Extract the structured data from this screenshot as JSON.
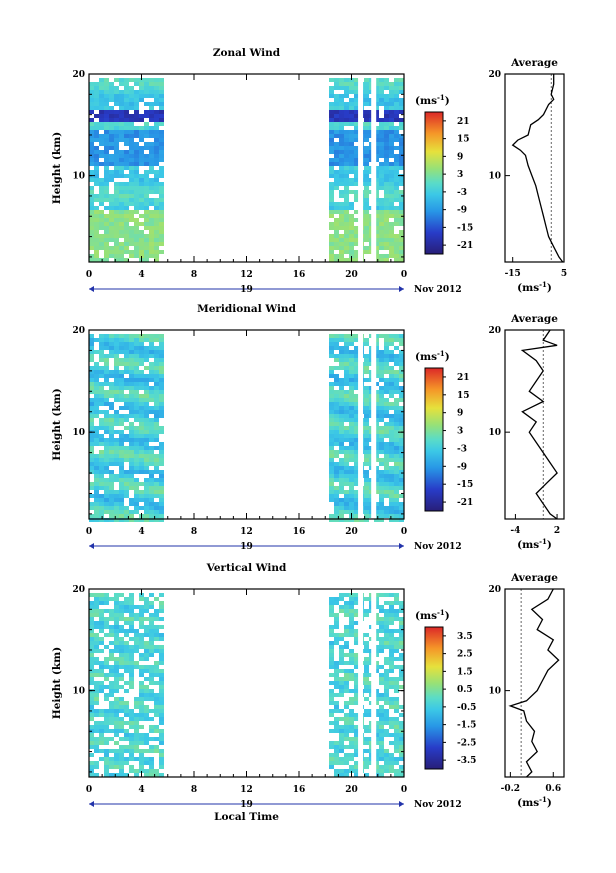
{
  "chart_data": [
    {
      "type": "heatmap",
      "title": "Zonal Wind",
      "xlabel": "",
      "ylabel": "Height (km)",
      "x_ticks": [
        "0",
        "4",
        "8",
        "12",
        "16",
        "20",
        "0"
      ],
      "y_ticks": [
        "10",
        "20"
      ],
      "xlim": [
        0,
        24
      ],
      "ylim": [
        1.5,
        20
      ],
      "date_marker": "19",
      "date_label": "Nov 2012",
      "colorbar": {
        "unit": "(ms",
        "unit_sup": "-1",
        "unit_close": ")",
        "ticks": [
          "21",
          "15",
          "9",
          "3",
          "-3",
          "-9",
          "-15",
          "-21"
        ],
        "range": [
          -24,
          24
        ]
      },
      "data_gap_local_time": [
        5.5,
        18
      ],
      "profile": {
        "title": "Average",
        "x_ticks": [
          "-15",
          "5"
        ],
        "xlim": [
          -18,
          5
        ],
        "y_ticks": [
          "10",
          "20"
        ],
        "xlabel": "(ms",
        "xlabel_sup": "-1",
        "xlabel_close": ")",
        "heights": [
          1.5,
          2,
          3,
          4,
          5,
          6,
          7,
          8,
          9,
          10,
          11,
          12,
          12.5,
          13,
          13.5,
          14,
          15,
          15.5,
          16,
          17,
          17.5,
          18,
          19,
          20
        ],
        "values": [
          4.5,
          3,
          1,
          -1,
          -2,
          -3,
          -4,
          -5,
          -6,
          -7.5,
          -9,
          -10,
          -12,
          -15,
          -13,
          -9,
          -8,
          -5,
          -3,
          -1,
          1,
          0,
          1,
          1
        ]
      }
    },
    {
      "type": "heatmap",
      "title": "Meridional Wind",
      "xlabel": "",
      "ylabel": "Height (km)",
      "x_ticks": [
        "0",
        "4",
        "8",
        "12",
        "16",
        "20",
        "0"
      ],
      "y_ticks": [
        "10",
        "20"
      ],
      "xlim": [
        0,
        24
      ],
      "ylim": [
        1.5,
        20
      ],
      "date_marker": "19",
      "date_label": "Nov 2012",
      "colorbar": {
        "unit": "(ms",
        "unit_sup": "-1",
        "unit_close": ")",
        "ticks": [
          "21",
          "15",
          "9",
          "3",
          "-3",
          "-9",
          "-15",
          "-21"
        ],
        "range": [
          -24,
          24
        ]
      },
      "data_gap_local_time": [
        5.5,
        18
      ],
      "profile": {
        "title": "Average",
        "x_ticks": [
          "-4",
          "2"
        ],
        "xlim": [
          -5.5,
          3
        ],
        "y_ticks": [
          "10",
          "20"
        ],
        "xlabel": "(ms",
        "xlabel_sup": "-1",
        "xlabel_close": ")",
        "heights": [
          1.5,
          2,
          3,
          4,
          5,
          6,
          7,
          8,
          9,
          10,
          11,
          12,
          13,
          14,
          15,
          16,
          17,
          18,
          18.5,
          19,
          20
        ],
        "values": [
          2,
          1,
          0,
          -1,
          0.5,
          2,
          1,
          0,
          -1,
          -2,
          -1,
          -3,
          0,
          -2,
          -1,
          0,
          -1,
          -3,
          2,
          0,
          1
        ]
      }
    },
    {
      "type": "heatmap",
      "title": "Vertical Wind",
      "xlabel": "Local Time",
      "ylabel": "Height (km)",
      "x_ticks": [
        "0",
        "4",
        "8",
        "12",
        "16",
        "20",
        "0"
      ],
      "y_ticks": [
        "10",
        "20"
      ],
      "xlim": [
        0,
        24
      ],
      "ylim": [
        1.5,
        20
      ],
      "date_marker": "19",
      "date_label": "Nov 2012",
      "colorbar": {
        "unit": "(ms",
        "unit_sup": "-1",
        "unit_close": ")",
        "ticks": [
          "3.5",
          "2.5",
          "1.5",
          "0.5",
          "-0.5",
          "-1.5",
          "-2.5",
          "-3.5"
        ],
        "range": [
          -4,
          4
        ]
      },
      "data_gap_local_time": [
        5.5,
        18
      ],
      "profile": {
        "title": "Average",
        "x_ticks": [
          "-0.2",
          "0.6"
        ],
        "xlim": [
          -0.3,
          0.8
        ],
        "y_ticks": [
          "10",
          "20"
        ],
        "xlabel": "(ms",
        "xlabel_sup": "-1",
        "xlabel_close": ")",
        "heights": [
          1.5,
          2,
          3,
          4,
          5,
          6,
          7,
          8,
          8.5,
          9,
          10,
          11,
          12,
          13,
          14,
          15,
          16,
          17,
          18,
          19,
          20
        ],
        "values": [
          0.1,
          0.2,
          0.1,
          0.3,
          0.2,
          0.25,
          0.1,
          0.05,
          -0.2,
          0.1,
          0.3,
          0.4,
          0.5,
          0.7,
          0.5,
          0.6,
          0.3,
          0.4,
          0.2,
          0.5,
          0.6
        ]
      }
    }
  ]
}
